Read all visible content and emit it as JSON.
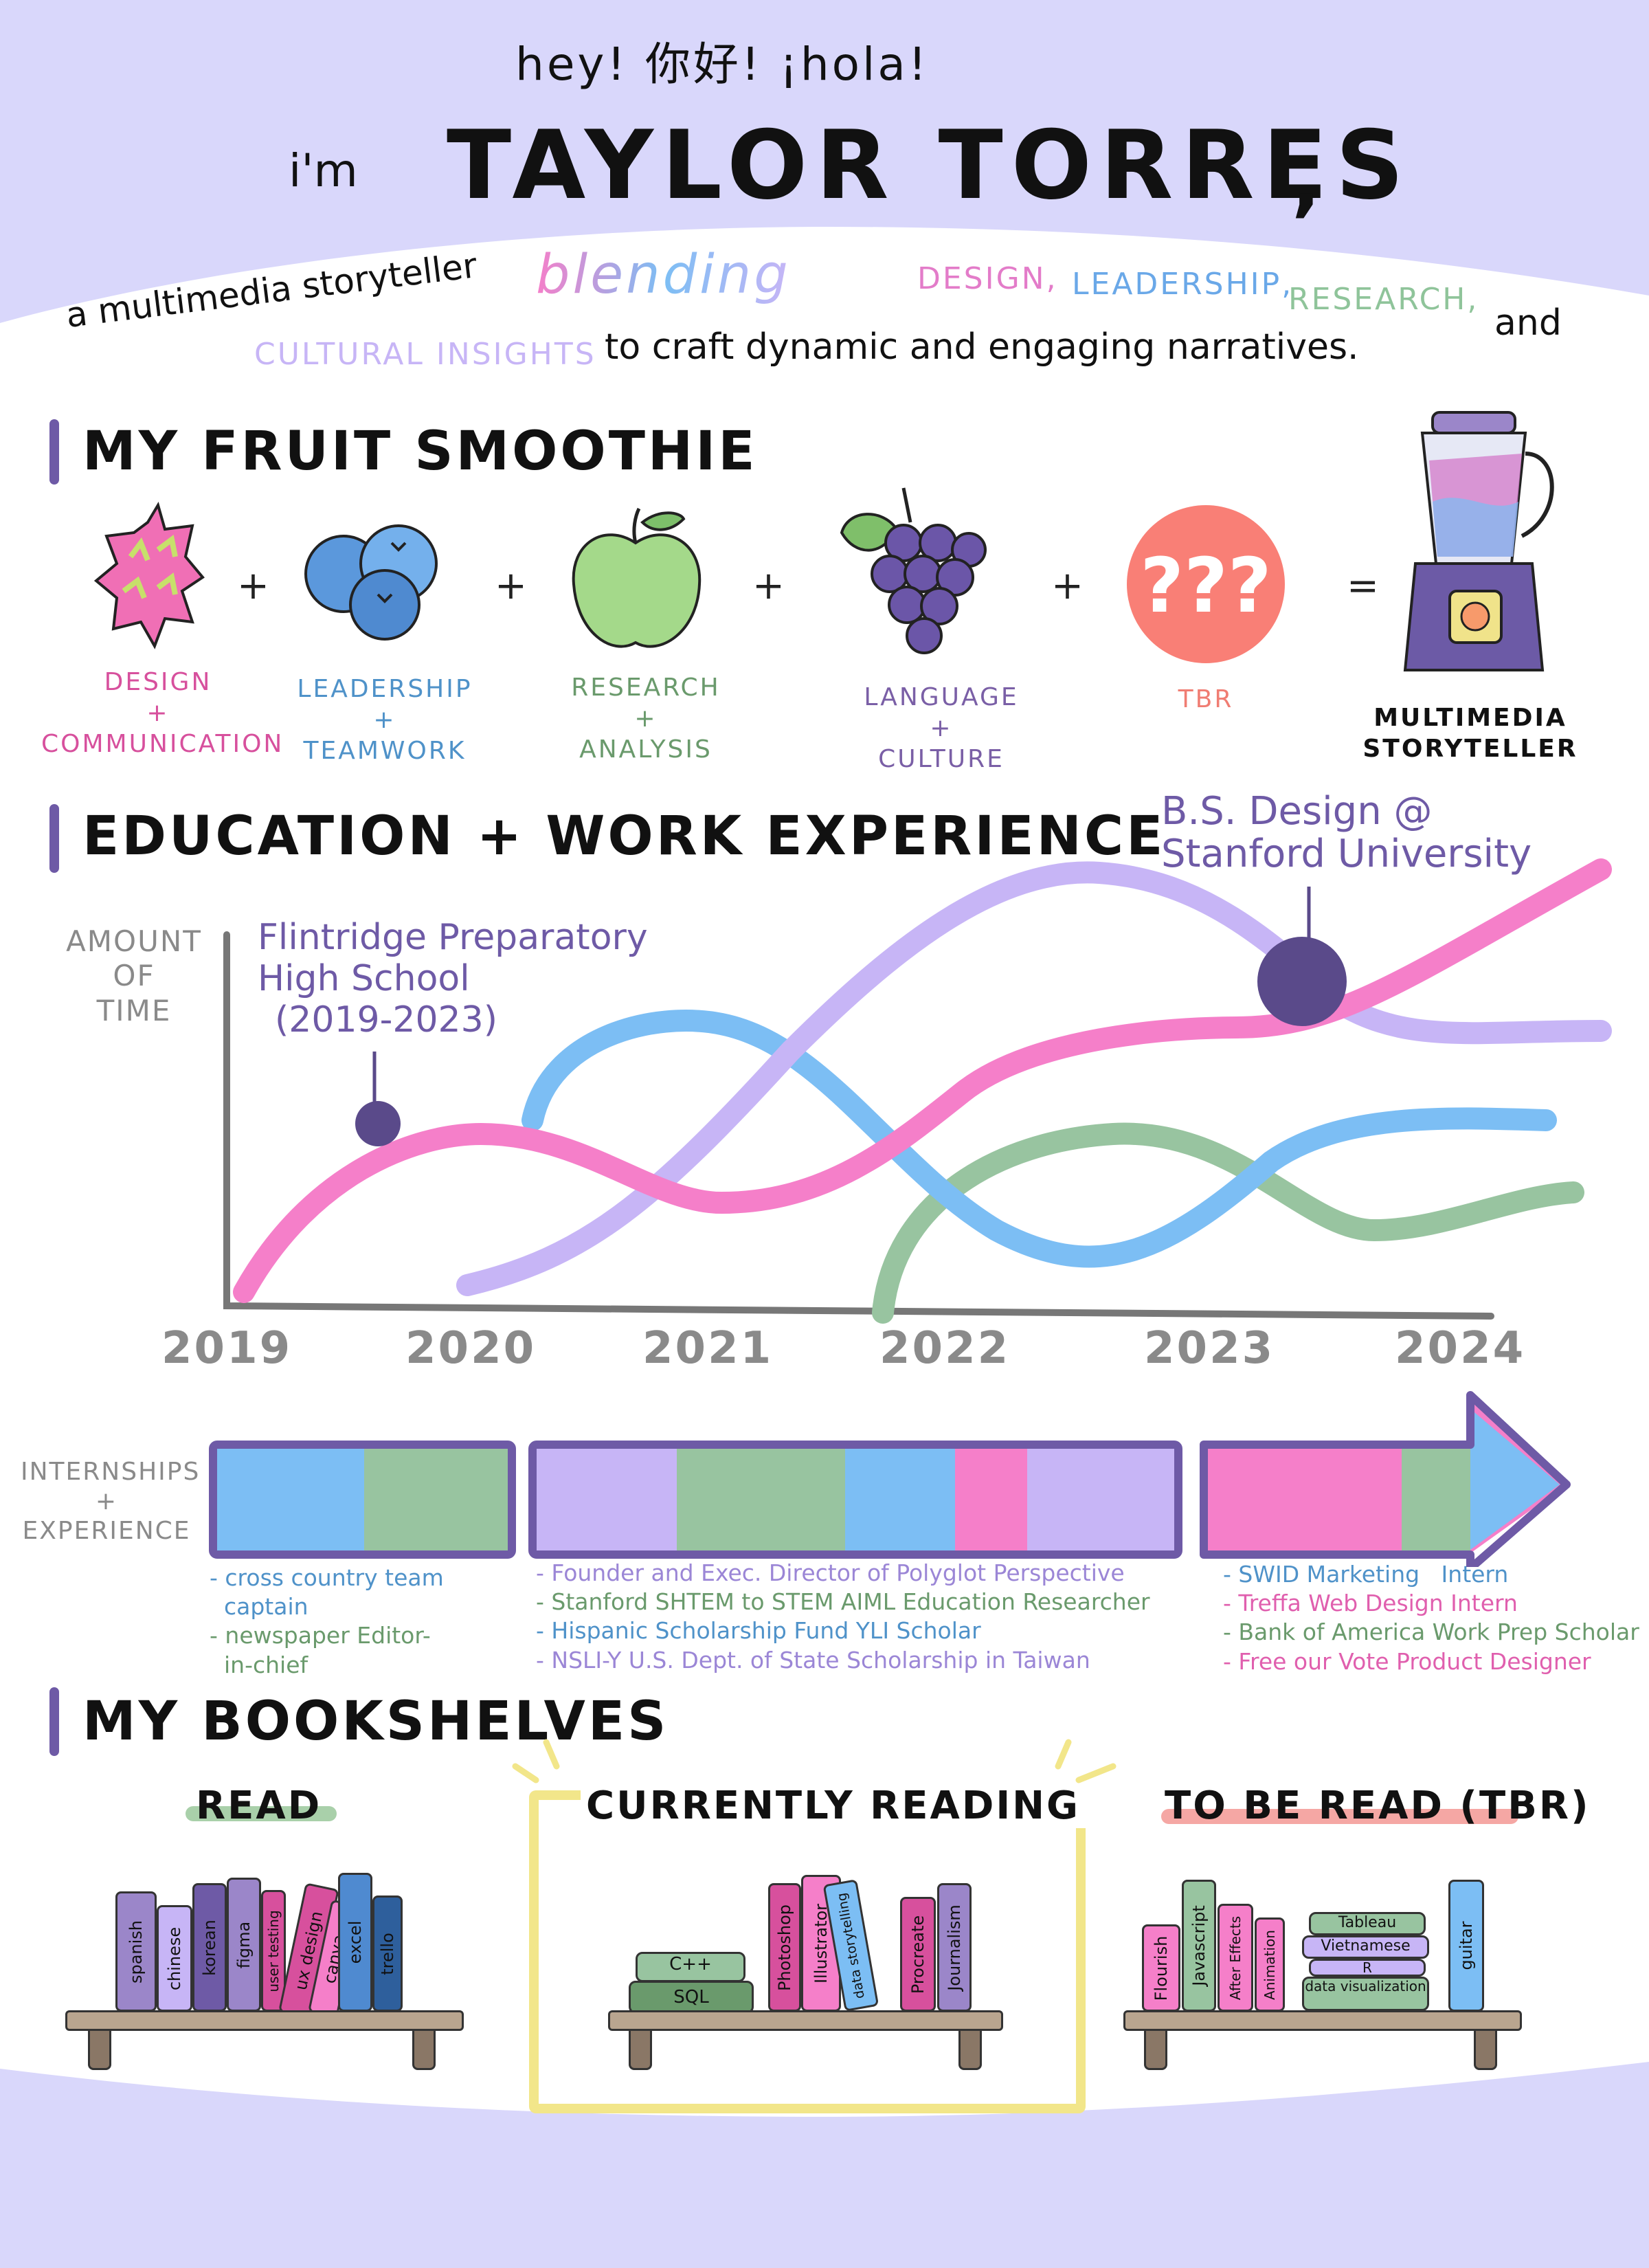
{
  "header": {
    "greeting": "hey!  你好!  ¡hola!",
    "im": "i'm",
    "name": "TAYLOR TORRES",
    "comma": ",",
    "tagline_part1": "a multimedia storyteller",
    "tagline_blending": "blending",
    "tagline_design": "DESIGN,",
    "tagline_leadership": "LEADERSHIP,",
    "tagline_research": "RESEARCH,",
    "tagline_and": "and",
    "tagline_cultural": "CULTURAL INSIGHTS",
    "tagline_part2": "to craft dynamic and engaging narratives."
  },
  "smoothie": {
    "title": "MY FRUIT SMOOTHIE",
    "items": [
      {
        "label_top": "DESIGN",
        "plus": "+",
        "label_bottom": "COMMUNICATION",
        "icon": "dragonfruit-icon",
        "color": "#d7509d"
      },
      {
        "label_top": "LEADERSHIP",
        "plus": "+",
        "label_bottom": "TEAMWORK",
        "icon": "blueberries-icon",
        "color": "#4f92c9"
      },
      {
        "label_top": "RESEARCH",
        "plus": "+",
        "label_bottom": "ANALYSIS",
        "icon": "apple-icon",
        "color": "#6a9a6c"
      },
      {
        "label_top": "LANGUAGE",
        "plus": "+",
        "label_bottom": "CULTURE",
        "icon": "grapes-icon",
        "color": "#7a5fa6"
      },
      {
        "label_top": "TBR",
        "plus": "",
        "label_bottom": "",
        "icon": "question-marks-icon",
        "color": "#f07d73"
      }
    ],
    "plus_sign": "+",
    "equals_sign": "=",
    "result_line1": "MULTIMEDIA",
    "result_line2": "STORYTELLER",
    "result_icon": "blender-icon"
  },
  "education": {
    "title": "EDUCATION + WORK EXPERIENCE",
    "ylabel_line1": "AMOUNT",
    "ylabel_line2": "OF",
    "ylabel_line3": "TIME",
    "annotation_hs_line1": "Flintridge Preparatory",
    "annotation_hs_line2": "High School",
    "annotation_hs_line3": "(2019-2023)",
    "annotation_bs_line1": "B.S. Design @",
    "annotation_bs_line2": "Stanford University",
    "xticks": [
      "2019",
      "2020",
      "2021",
      "2022",
      "2023",
      "2024"
    ],
    "colors": {
      "pink": "#f57fc9",
      "blue": "#7cbef4",
      "purple": "#c7b5f6",
      "green": "#98c4a0",
      "dot": "#5a4a8a"
    }
  },
  "internships": {
    "label_line1": "INTERNSHIPS",
    "label_line2": "+",
    "label_line3": "EXPERIENCE",
    "group1": [
      "- cross country team",
      "  captain",
      "- newspaper Editor-",
      "  in-chief"
    ],
    "group2": [
      "- Founder and Exec. Director of Polyglot Perspective",
      "- Stanford SHTEM to STEM AIML Education Researcher",
      "- Hispanic Scholarship Fund YLI Scholar",
      "- NSLI-Y U.S. Dept. of State Scholarship in Taiwan"
    ],
    "group3": [
      "- SWID Marketing   Intern",
      "- Treffa Web Design Intern",
      "- Bank of America Work Prep Scholar",
      "- Free our Vote Product Designer"
    ]
  },
  "bookshelves": {
    "title": "MY BOOKSHELVES",
    "read_title": "READ",
    "reading_title": "CURRENTLY READING",
    "tbr_title": "TO BE READ (TBR)",
    "read_books": [
      "spanish",
      "chinese",
      "korean",
      "figma",
      "user testing",
      "ux design",
      "canva",
      "excel",
      "trello"
    ],
    "reading_stack": [
      "C++",
      "SQL"
    ],
    "reading_books": [
      "Photoshop",
      "Illustrator",
      "data storytelling",
      "Procreate",
      "Journalism"
    ],
    "tbr_books": [
      "Flourish",
      "Javascript",
      "After Effects",
      "Animation"
    ],
    "tbr_stack": [
      "Tableau",
      "Vietnamese",
      "R",
      "data visualization"
    ],
    "tbr_last": "guitar"
  }
}
